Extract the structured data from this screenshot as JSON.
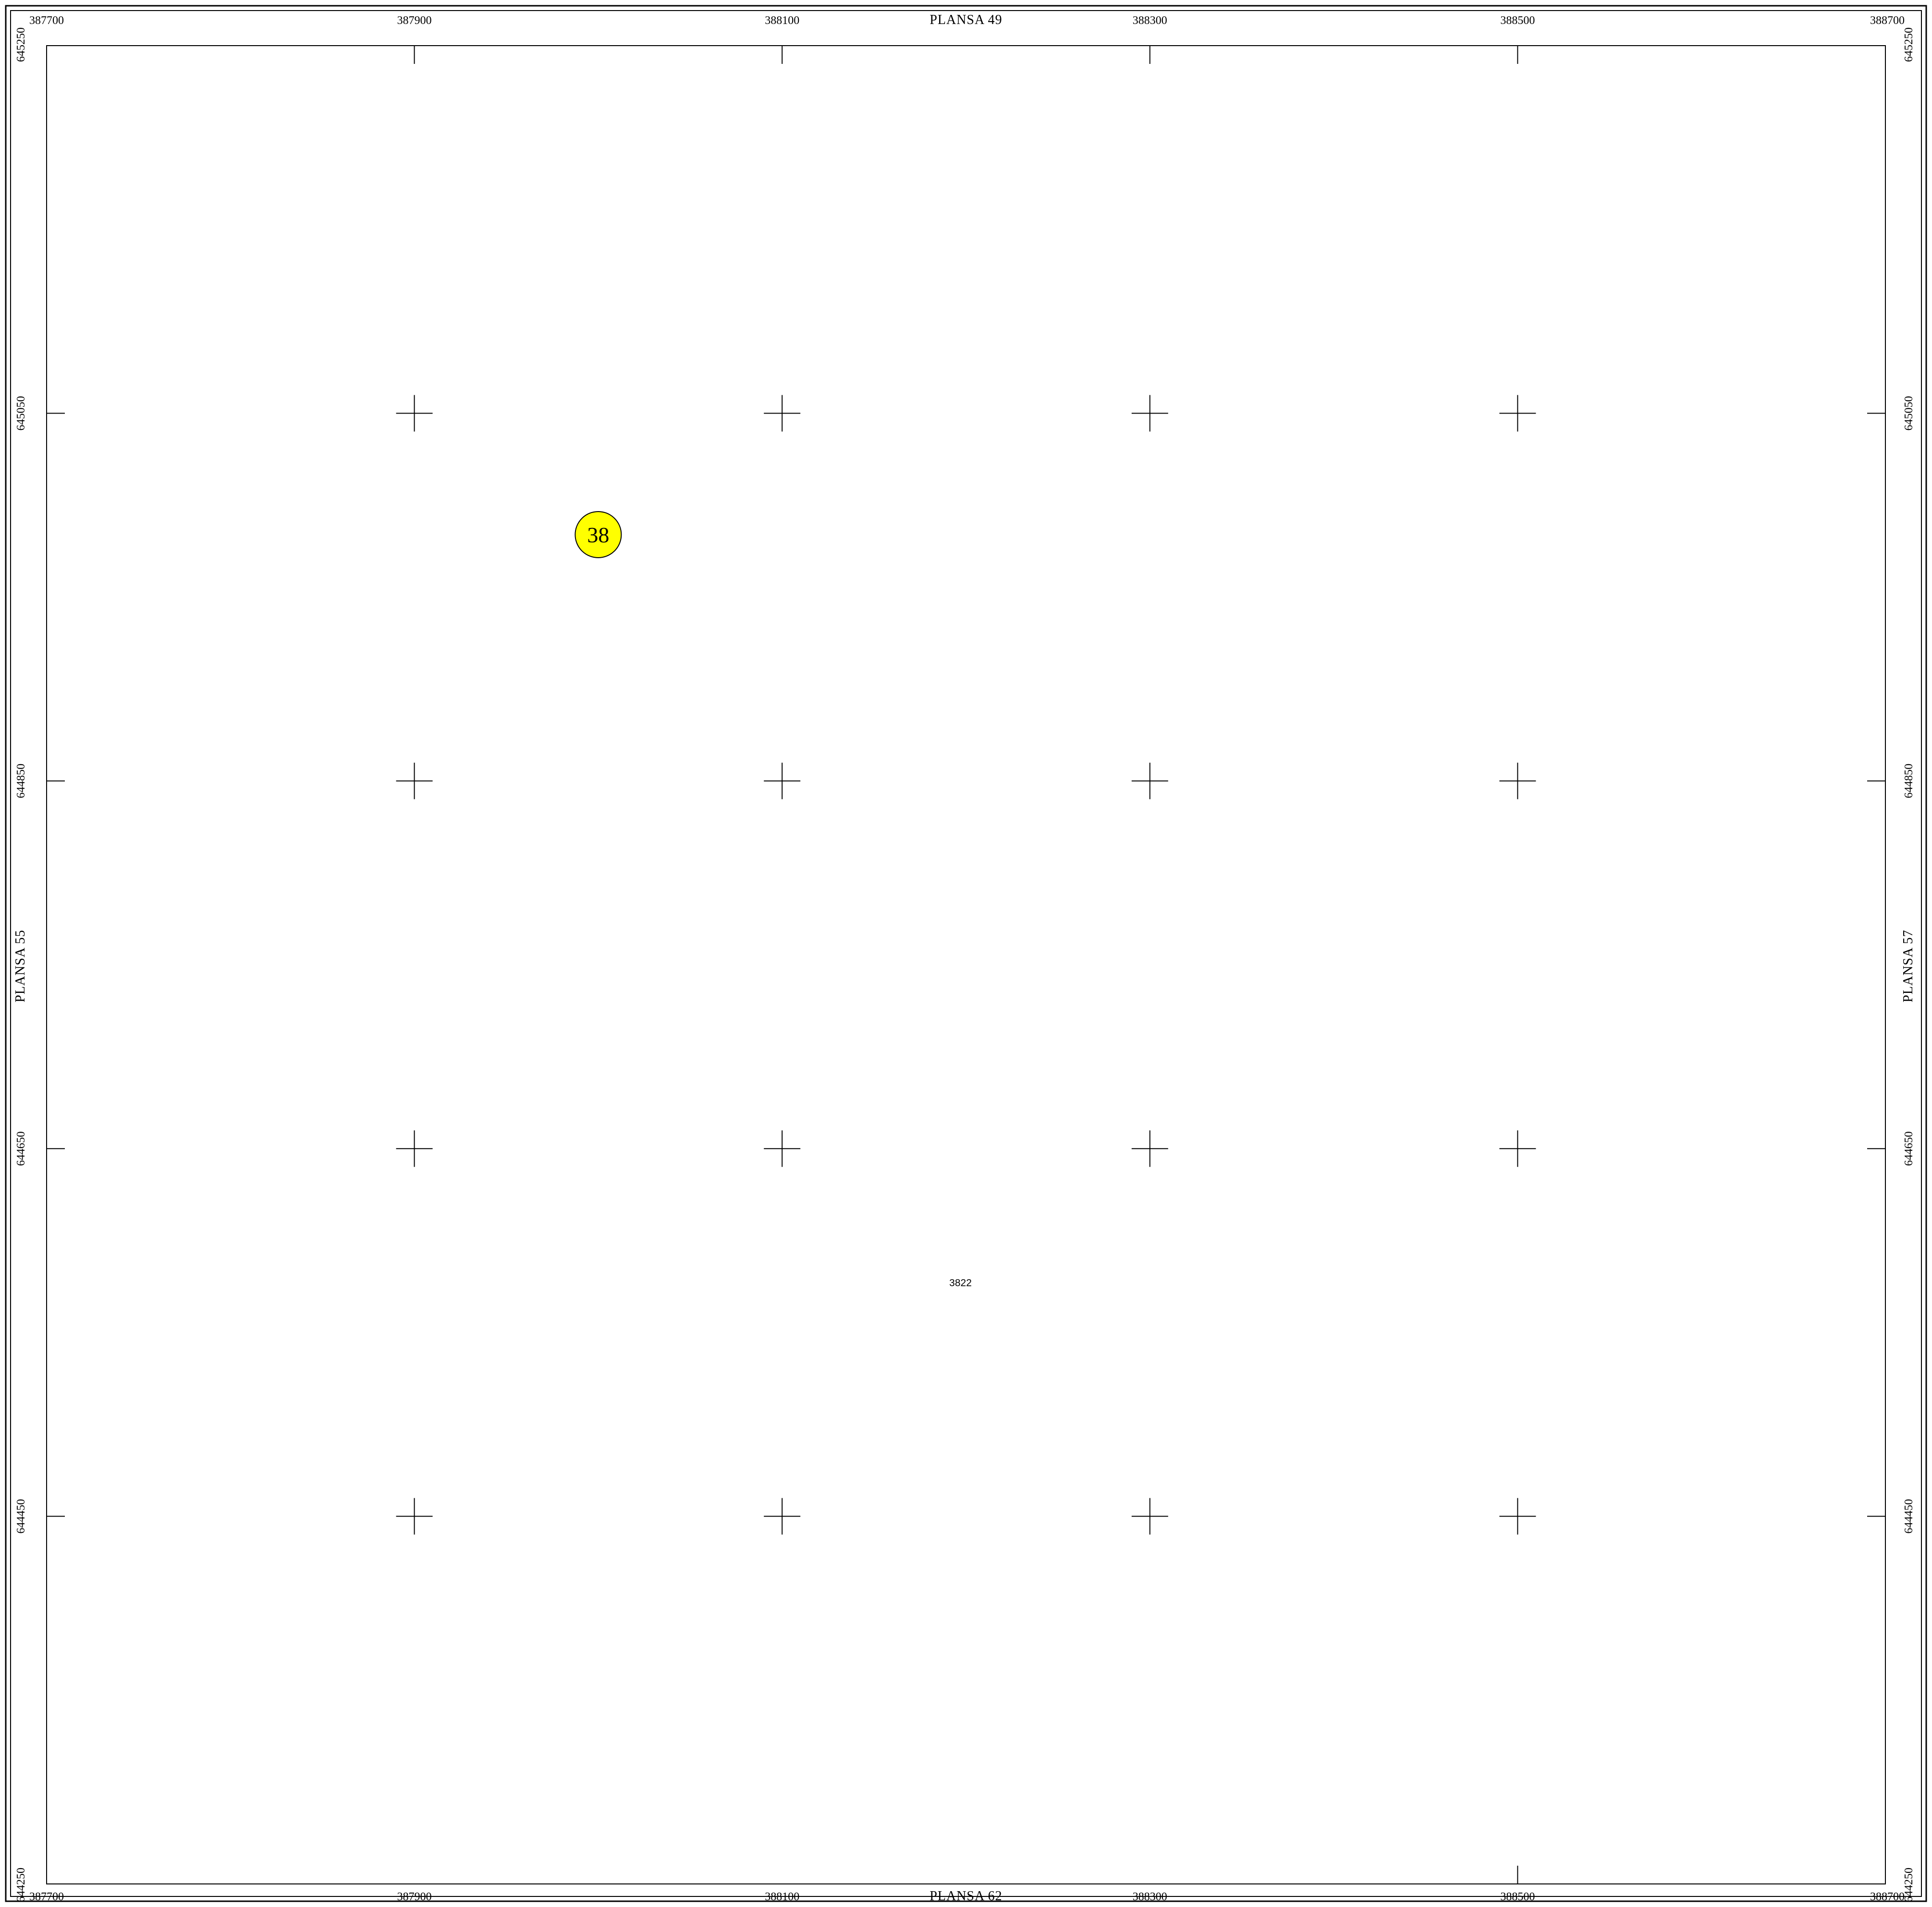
{
  "sheet_labels": {
    "north": "PLANSA  49",
    "south": "PLANSA  62",
    "west": "PLANSA  55",
    "east": "PLANSA  57"
  },
  "easting_ticks": [
    "387700",
    "387900",
    "388100",
    "388300",
    "388500",
    "388700"
  ],
  "northing_ticks": [
    "645250",
    "645050",
    "644850",
    "644650",
    "644450",
    "644250"
  ],
  "markers": [
    {
      "label": "38",
      "easting": 388000,
      "northing": 644984,
      "color": "#ffff00"
    }
  ],
  "parcels": [
    {
      "label": "3822",
      "easting": 388197,
      "northing": 644577
    }
  ]
}
